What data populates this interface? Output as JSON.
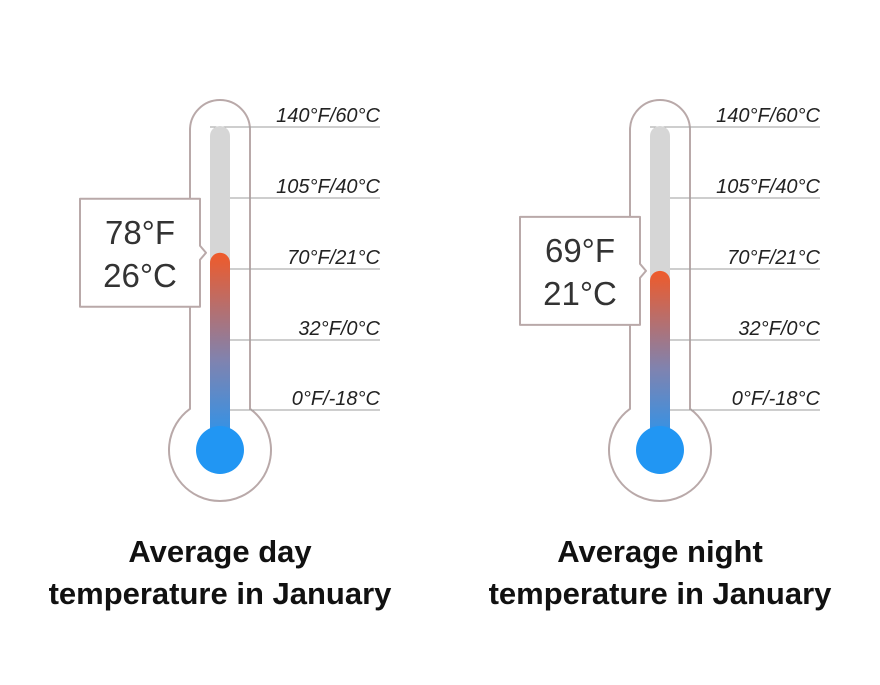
{
  "chart_data": [
    {
      "type": "gauge",
      "title_lines": [
        "Average day",
        "temperature in January"
      ],
      "reading": {
        "fahrenheit": 78,
        "celsius": 26,
        "fahrenheit_label": "78°F",
        "celsius_label": "26°C"
      },
      "scale_ticks": [
        {
          "label": "140°F/60°C",
          "fahrenheit": 140
        },
        {
          "label": "105°F/40°C",
          "fahrenheit": 105
        },
        {
          "label": "70°F/21°C",
          "fahrenheit": 70
        },
        {
          "label": "32°F/0°C",
          "fahrenheit": 32
        },
        {
          "label": "0°F/-18°C",
          "fahrenheit": 0
        }
      ]
    },
    {
      "type": "gauge",
      "title_lines": [
        "Average night",
        "temperature in January"
      ],
      "reading": {
        "fahrenheit": 69,
        "celsius": 21,
        "fahrenheit_label": "69°F",
        "celsius_label": "21°C"
      },
      "scale_ticks": [
        {
          "label": "140°F/60°C",
          "fahrenheit": 140
        },
        {
          "label": "105°F/40°C",
          "fahrenheit": 105
        },
        {
          "label": "70°F/21°C",
          "fahrenheit": 70
        },
        {
          "label": "32°F/0°C",
          "fahrenheit": 32
        },
        {
          "label": "0°F/-18°C",
          "fahrenheit": 0
        }
      ]
    }
  ],
  "colors": {
    "outline": "#b9a9a9",
    "tube_empty": "#d6d6d6",
    "mercury_hot": "#ef5a2a",
    "mercury_cold": "#2196f3",
    "tick_line": "#9e9e9e",
    "callout_border": "#b9a9a9"
  }
}
